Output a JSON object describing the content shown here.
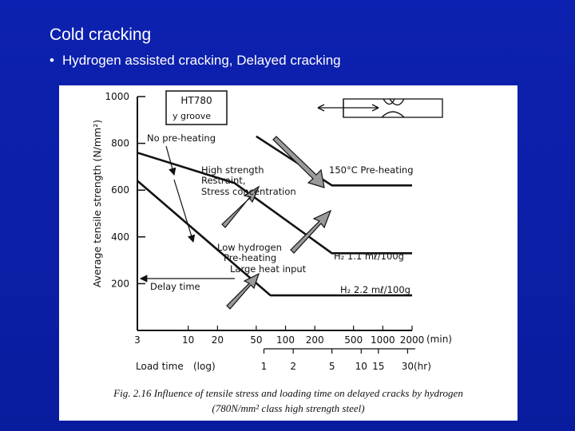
{
  "slide": {
    "title": "Cold cracking",
    "bullet": "Hydrogen assisted cracking,  Delayed cracking",
    "bullet_marker": "•"
  },
  "figure": {
    "caption_line1": "Fig. 2.16 Influence of tensile stress and loading time on delayed cracks by hydrogen",
    "caption_line2": "(780N/mm² class high strength steel)"
  },
  "chart_data": {
    "type": "line",
    "ylabel": "Average tensile strength (N/mm²)",
    "yticks": [
      "1000",
      "800",
      "600",
      "400",
      "200"
    ],
    "y_tick_values": [
      1000,
      800,
      600,
      400,
      200
    ],
    "ylim": [
      0,
      1000
    ],
    "x_min_ticks": [
      "3",
      "10",
      "20",
      "50",
      "100",
      "200",
      "500",
      "1000",
      "2000"
    ],
    "x_min_unit": "(min)",
    "x_hr_ticks": [
      "1",
      "2",
      "5",
      "10",
      "15",
      "30"
    ],
    "x_hr_unit": "(hr)",
    "xlabel": "Load time",
    "xscale_label": "(log)",
    "legend_box": [
      "HT780",
      "y groove"
    ],
    "series": [
      {
        "name": "150°C  Pre-heating",
        "x": [
          50,
          300,
          2000
        ],
        "y": [
          830,
          620,
          620
        ]
      },
      {
        "name": "H₂   1.1 mℓ/100g",
        "x": [
          3,
          30,
          300,
          2000
        ],
        "y": [
          760,
          630,
          330,
          330
        ]
      },
      {
        "name": "H₂   2.2 mℓ/100g",
        "x": [
          3,
          70,
          2000
        ],
        "y": [
          640,
          150,
          150
        ]
      }
    ],
    "annotations": [
      "No pre-heating",
      "High strength",
      "Restraint,",
      "Stress concentration",
      "Low hydrogen",
      "Pre-heating",
      "Large heat input",
      "Delay time"
    ],
    "grid": false,
    "colors": {
      "line": "#111111",
      "arrow_fill": "#9a9a9a"
    }
  }
}
